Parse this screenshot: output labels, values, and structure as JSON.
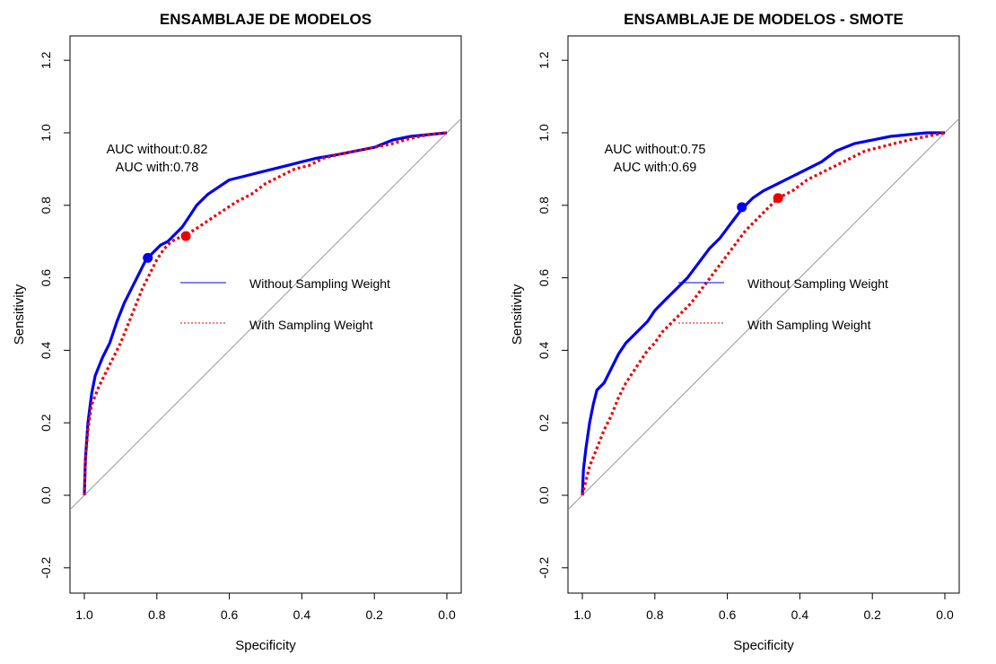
{
  "colors": {
    "without": "#0000ee",
    "with": "#ee0000",
    "diagonal": "#999999",
    "frame": "#000000"
  },
  "chart_data": [
    {
      "type": "line",
      "title": "ENSAMBLAJE DE MODELOS",
      "xlabel": "Specificity",
      "ylabel": "Sensitivity",
      "xlim": [
        1.0,
        0.0
      ],
      "ylim": [
        -0.2,
        1.2
      ],
      "x_reversed": true,
      "xticks": [
        "1.0",
        "0.8",
        "0.6",
        "0.4",
        "0.2",
        "0.0"
      ],
      "yticks": [
        "-0.2",
        "0.0",
        "0.2",
        "0.4",
        "0.6",
        "0.8",
        "1.0",
        "1.2"
      ],
      "auc_text": [
        "AUC without:0.82",
        "AUC with:0.78"
      ],
      "legend": [
        "Without Sampling Weight",
        "With Sampling Weight"
      ],
      "diagonal": true,
      "series": [
        {
          "name": "Without Sampling Weight",
          "style": "solid",
          "x": [
            1.0,
            0.997,
            0.99,
            0.98,
            0.97,
            0.95,
            0.93,
            0.91,
            0.89,
            0.87,
            0.85,
            0.83,
            0.81,
            0.79,
            0.77,
            0.75,
            0.73,
            0.71,
            0.69,
            0.66,
            0.63,
            0.6,
            0.56,
            0.52,
            0.48,
            0.44,
            0.4,
            0.36,
            0.3,
            0.25,
            0.2,
            0.15,
            0.1,
            0.05,
            0.0
          ],
          "y": [
            0.0,
            0.1,
            0.2,
            0.28,
            0.33,
            0.38,
            0.42,
            0.48,
            0.53,
            0.57,
            0.61,
            0.65,
            0.67,
            0.69,
            0.7,
            0.72,
            0.74,
            0.77,
            0.8,
            0.83,
            0.85,
            0.87,
            0.88,
            0.89,
            0.9,
            0.91,
            0.92,
            0.93,
            0.94,
            0.95,
            0.96,
            0.98,
            0.99,
            0.995,
            1.0
          ]
        },
        {
          "name": "With Sampling Weight",
          "style": "dotted",
          "x": [
            1.0,
            0.997,
            0.99,
            0.98,
            0.96,
            0.94,
            0.92,
            0.9,
            0.88,
            0.86,
            0.84,
            0.82,
            0.8,
            0.78,
            0.76,
            0.74,
            0.72,
            0.7,
            0.67,
            0.64,
            0.61,
            0.58,
            0.54,
            0.5,
            0.46,
            0.42,
            0.38,
            0.34,
            0.3,
            0.25,
            0.2,
            0.15,
            0.1,
            0.05,
            0.0
          ],
          "y": [
            0.0,
            0.1,
            0.18,
            0.25,
            0.3,
            0.34,
            0.38,
            0.42,
            0.47,
            0.52,
            0.57,
            0.61,
            0.65,
            0.68,
            0.7,
            0.71,
            0.72,
            0.73,
            0.75,
            0.77,
            0.79,
            0.81,
            0.83,
            0.86,
            0.88,
            0.9,
            0.91,
            0.93,
            0.94,
            0.95,
            0.96,
            0.97,
            0.985,
            0.995,
            1.0
          ]
        }
      ],
      "points": [
        {
          "series": "Without Sampling Weight",
          "x": 0.825,
          "y": 0.655
        },
        {
          "series": "With Sampling Weight",
          "x": 0.72,
          "y": 0.715
        }
      ]
    },
    {
      "type": "line",
      "title": "ENSAMBLAJE DE MODELOS - SMOTE",
      "xlabel": "Specificity",
      "ylabel": "Sensitivity",
      "xlim": [
        1.0,
        0.0
      ],
      "ylim": [
        -0.2,
        1.2
      ],
      "x_reversed": true,
      "xticks": [
        "1.0",
        "0.8",
        "0.6",
        "0.4",
        "0.2",
        "0.0"
      ],
      "yticks": [
        "-0.2",
        "0.0",
        "0.2",
        "0.4",
        "0.6",
        "0.8",
        "1.0",
        "1.2"
      ],
      "auc_text": [
        "AUC without:0.75",
        "AUC with:0.69"
      ],
      "legend": [
        "Without Sampling Weight",
        "With Sampling Weight"
      ],
      "diagonal": true,
      "series": [
        {
          "name": "Without Sampling Weight",
          "style": "solid",
          "x": [
            1.0,
            0.997,
            0.99,
            0.98,
            0.97,
            0.96,
            0.94,
            0.92,
            0.9,
            0.88,
            0.86,
            0.84,
            0.82,
            0.8,
            0.77,
            0.74,
            0.71,
            0.68,
            0.65,
            0.62,
            0.59,
            0.56,
            0.53,
            0.5,
            0.46,
            0.42,
            0.38,
            0.34,
            0.3,
            0.25,
            0.2,
            0.15,
            0.1,
            0.05,
            0.0
          ],
          "y": [
            0.0,
            0.07,
            0.13,
            0.2,
            0.25,
            0.29,
            0.31,
            0.35,
            0.39,
            0.42,
            0.44,
            0.46,
            0.48,
            0.51,
            0.54,
            0.57,
            0.6,
            0.64,
            0.68,
            0.71,
            0.75,
            0.79,
            0.82,
            0.84,
            0.86,
            0.88,
            0.9,
            0.92,
            0.95,
            0.97,
            0.98,
            0.99,
            0.995,
            1.0,
            1.0
          ]
        },
        {
          "name": "With Sampling Weight",
          "style": "dotted",
          "x": [
            1.0,
            0.99,
            0.98,
            0.96,
            0.94,
            0.92,
            0.9,
            0.88,
            0.86,
            0.84,
            0.82,
            0.8,
            0.78,
            0.76,
            0.73,
            0.7,
            0.67,
            0.64,
            0.61,
            0.58,
            0.55,
            0.52,
            0.49,
            0.46,
            0.42,
            0.38,
            0.34,
            0.3,
            0.26,
            0.22,
            0.18,
            0.14,
            0.1,
            0.05,
            0.0
          ],
          "y": [
            0.0,
            0.04,
            0.08,
            0.13,
            0.18,
            0.22,
            0.27,
            0.31,
            0.34,
            0.37,
            0.4,
            0.42,
            0.45,
            0.47,
            0.5,
            0.53,
            0.57,
            0.61,
            0.65,
            0.69,
            0.73,
            0.76,
            0.79,
            0.82,
            0.84,
            0.87,
            0.89,
            0.91,
            0.93,
            0.95,
            0.96,
            0.97,
            0.98,
            0.99,
            1.0
          ]
        }
      ],
      "points": [
        {
          "series": "Without Sampling Weight",
          "x": 0.56,
          "y": 0.795
        },
        {
          "series": "With Sampling Weight",
          "x": 0.46,
          "y": 0.82
        }
      ]
    }
  ]
}
